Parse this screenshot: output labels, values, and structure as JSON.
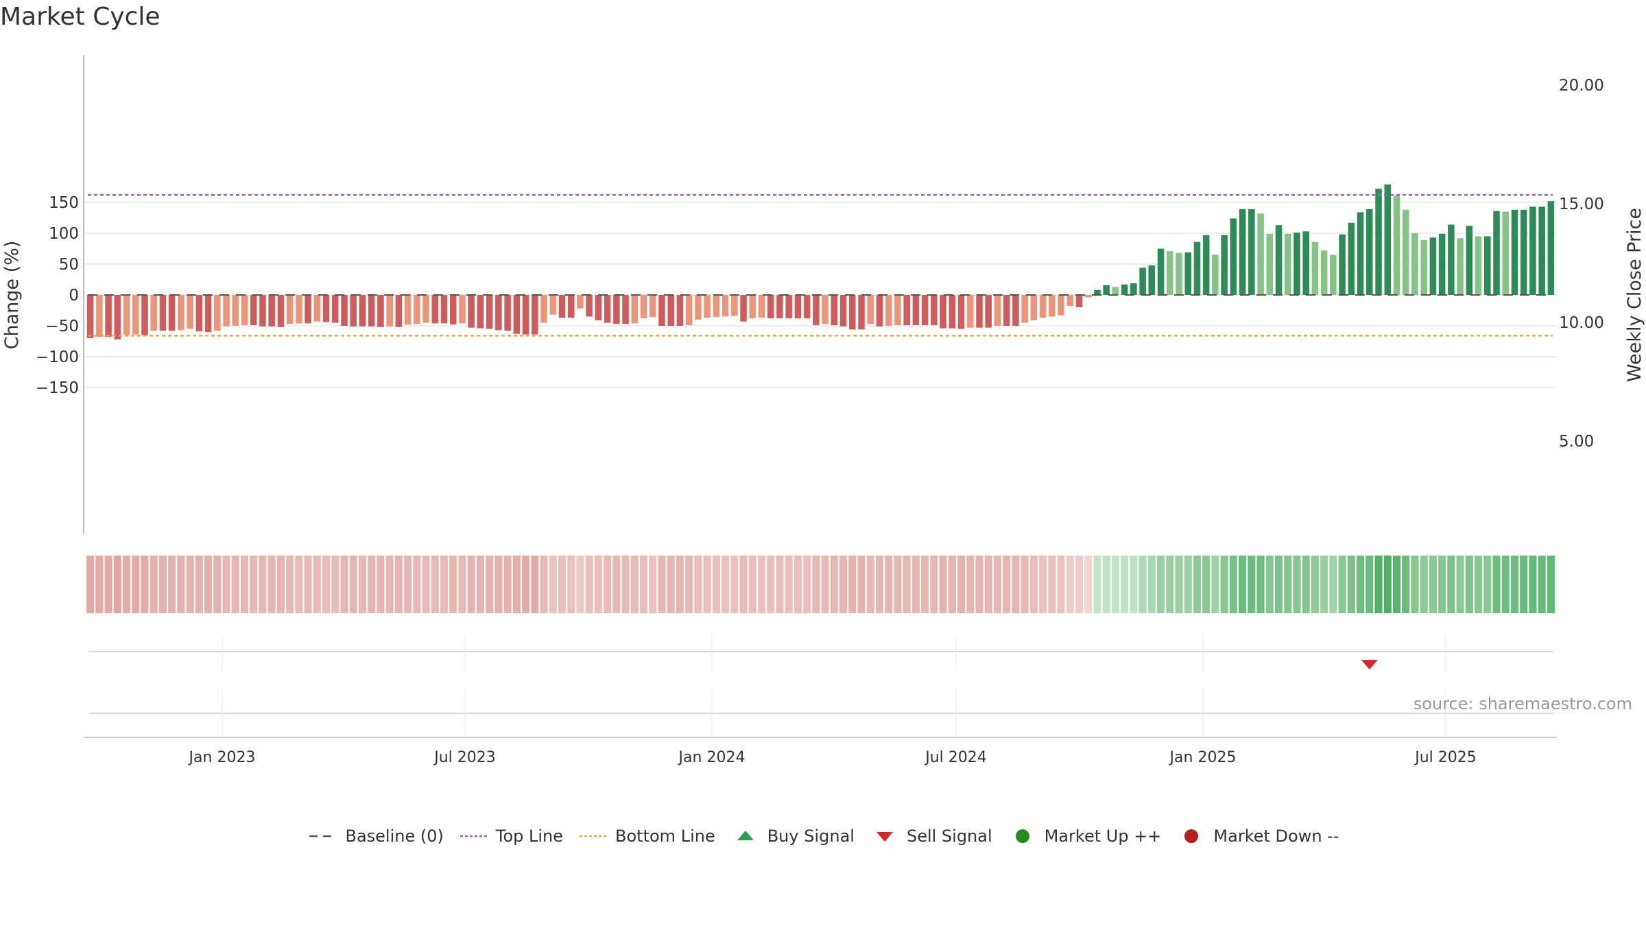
{
  "chart_data": {
    "title": "Market Cycle",
    "source": "source: sharemaestro.com",
    "type": "bar",
    "y_left": {
      "label": "Change (%)",
      "range": [
        -195,
        195
      ],
      "ticks": [
        150,
        100,
        50,
        0,
        -50,
        -100,
        -150
      ]
    },
    "y_right": {
      "label": "Weekly Close Price",
      "ticks": [
        "20.00",
        "15.00",
        "10.00",
        "5.00"
      ]
    },
    "x_axis": {
      "ticks": [
        "Jan 2023",
        "Jul 2023",
        "Jan 2024",
        "Jul 2024",
        "Jan 2025",
        "Jul 2025"
      ]
    },
    "reference_lines": {
      "baseline": 0,
      "top_line": 162,
      "bottom_line": -66
    },
    "values": [
      -70,
      -68,
      -68,
      -72,
      -65,
      -64,
      -65,
      -58,
      -58,
      -58,
      -57,
      -55,
      -59,
      -60,
      -58,
      -51,
      -50,
      -49,
      -49,
      -51,
      -51,
      -52,
      -47,
      -46,
      -46,
      -43,
      -44,
      -45,
      -50,
      -51,
      -51,
      -51,
      -52,
      -51,
      -52,
      -48,
      -47,
      -45,
      -46,
      -46,
      -48,
      -46,
      -53,
      -54,
      -55,
      -57,
      -58,
      -63,
      -64,
      -64,
      -45,
      -32,
      -37,
      -37,
      -22,
      -35,
      -41,
      -45,
      -47,
      -47,
      -46,
      -38,
      -36,
      -50,
      -50,
      -50,
      -49,
      -40,
      -37,
      -36,
      -35,
      -34,
      -43,
      -38,
      -37,
      -38,
      -38,
      -38,
      -38,
      -38,
      -49,
      -47,
      -49,
      -51,
      -56,
      -56,
      -47,
      -51,
      -50,
      -49,
      -49,
      -49,
      -49,
      -49,
      -54,
      -54,
      -55,
      -53,
      -53,
      -53,
      -50,
      -50,
      -50,
      -45,
      -41,
      -37,
      -35,
      -33,
      -18,
      -20,
      -4,
      8,
      16,
      13,
      17,
      19,
      44,
      48,
      75,
      71,
      68,
      69,
      86,
      97,
      65,
      97,
      124,
      139,
      139,
      132,
      99,
      113,
      99,
      101,
      103,
      86,
      72,
      65,
      98,
      117,
      134,
      139,
      172,
      179,
      161,
      138,
      100,
      89,
      93,
      99,
      114,
      92,
      112,
      95,
      95,
      136,
      135,
      138,
      138,
      143,
      143,
      152
    ],
    "color_scheme": {
      "up_dark": "#2e8b57",
      "up_light": "#87c387",
      "down_dark": "#cd5c5c",
      "down_light": "#e9967a"
    },
    "heat_strip_colors": {
      "negative": "#e2a7a4",
      "positive": "#4eae63"
    },
    "sell_signals": [
      {
        "date_index": 141
      }
    ],
    "legend": [
      {
        "label": "Baseline (0)",
        "symbol": "dashed-line",
        "color": "#555555"
      },
      {
        "label": "Top Line",
        "symbol": "dotted-line",
        "color": "#9467bd"
      },
      {
        "label": "Bottom Line",
        "symbol": "dotted-line",
        "color": "#f0a04b"
      },
      {
        "label": "Buy Signal",
        "symbol": "triangle-up",
        "color": "#2ca04c"
      },
      {
        "label": "Sell Signal",
        "symbol": "triangle-down",
        "color": "#d62728"
      },
      {
        "label": "Market Up ++",
        "symbol": "circle",
        "color": "#228b22"
      },
      {
        "label": "Market Down --",
        "symbol": "circle",
        "color": "#b22222"
      }
    ]
  }
}
